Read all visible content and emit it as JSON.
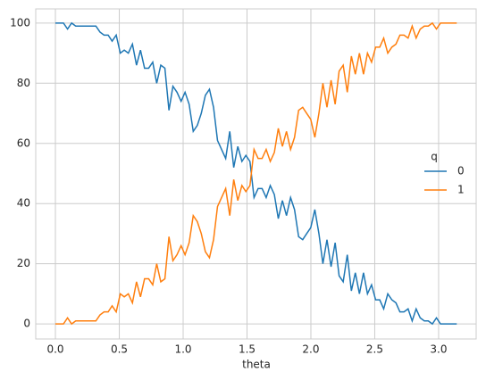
{
  "chart_data": {
    "type": "line",
    "x_label": "theta",
    "x": [
      0,
      0.032,
      0.063,
      0.095,
      0.127,
      0.159,
      0.19,
      0.222,
      0.254,
      0.286,
      0.317,
      0.349,
      0.381,
      0.413,
      0.444,
      0.476,
      0.508,
      0.539,
      0.571,
      0.603,
      0.635,
      0.666,
      0.698,
      0.73,
      0.762,
      0.793,
      0.825,
      0.857,
      0.889,
      0.92,
      0.952,
      0.984,
      1.015,
      1.047,
      1.079,
      1.111,
      1.142,
      1.174,
      1.206,
      1.238,
      1.269,
      1.301,
      1.333,
      1.365,
      1.396,
      1.428,
      1.46,
      1.491,
      1.523,
      1.555,
      1.587,
      1.618,
      1.65,
      1.682,
      1.714,
      1.745,
      1.777,
      1.809,
      1.841,
      1.872,
      1.904,
      1.936,
      1.967,
      1.999,
      2.031,
      2.063,
      2.094,
      2.126,
      2.158,
      2.19,
      2.221,
      2.253,
      2.285,
      2.317,
      2.348,
      2.38,
      2.412,
      2.443,
      2.475,
      2.507,
      2.539,
      2.57,
      2.602,
      2.634,
      2.666,
      2.697,
      2.729,
      2.761,
      2.793,
      2.824,
      2.856,
      2.888,
      2.919,
      2.951,
      2.983,
      3.015,
      3.046,
      3.078,
      3.11,
      3.142
    ],
    "series": [
      {
        "name": "0",
        "color": "#1f77b4",
        "values": [
          100,
          100,
          100,
          98,
          100,
          99,
          99,
          99,
          99,
          99,
          99,
          97,
          96,
          96,
          94,
          96,
          90,
          91,
          90,
          93,
          86,
          91,
          85,
          85,
          87,
          80,
          86,
          85,
          71,
          79,
          77,
          74,
          77,
          73,
          64,
          66,
          70,
          76,
          78,
          72,
          61,
          58,
          55,
          64,
          52,
          59,
          54,
          56,
          54,
          42,
          45,
          45,
          42,
          46,
          43,
          35,
          41,
          36,
          42,
          38,
          29,
          28,
          30,
          32,
          38,
          30,
          20,
          28,
          19,
          27,
          16,
          14,
          23,
          11,
          17,
          10,
          17,
          10,
          13,
          8,
          8,
          5,
          10,
          8,
          7,
          4,
          4,
          5,
          1,
          5,
          2,
          1,
          1,
          0,
          2,
          0,
          0,
          0,
          0,
          0
        ]
      },
      {
        "name": "1",
        "color": "#ff7f0e",
        "values": [
          0,
          0,
          0,
          2,
          0,
          1,
          1,
          1,
          1,
          1,
          1,
          3,
          4,
          4,
          6,
          4,
          10,
          9,
          10,
          7,
          14,
          9,
          15,
          15,
          13,
          20,
          14,
          15,
          29,
          21,
          23,
          26,
          23,
          27,
          36,
          34,
          30,
          24,
          22,
          28,
          39,
          42,
          45,
          36,
          48,
          41,
          46,
          44,
          46,
          58,
          55,
          55,
          58,
          54,
          57,
          65,
          59,
          64,
          58,
          62,
          71,
          72,
          70,
          68,
          62,
          70,
          80,
          72,
          81,
          73,
          84,
          86,
          77,
          89,
          83,
          90,
          83,
          90,
          87,
          92,
          92,
          95,
          90,
          92,
          93,
          96,
          96,
          95,
          99,
          95,
          98,
          99,
          99,
          100,
          98,
          100,
          100,
          100,
          100,
          100
        ]
      }
    ],
    "legend_title": "q",
    "xlim": [
      -0.154,
      3.294
    ],
    "xticks": [
      {
        "value": 0,
        "label": "0.0"
      },
      {
        "value": 0.5,
        "label": "0.5"
      },
      {
        "value": 1,
        "label": "1.0"
      },
      {
        "value": 1.5,
        "label": "1.5"
      },
      {
        "value": 2,
        "label": "2.0"
      },
      {
        "value": 2.5,
        "label": "2.5"
      },
      {
        "value": 3,
        "label": "3.0"
      }
    ],
    "ylim": [
      -5,
      104.7
    ],
    "yticks": [
      0,
      20,
      40,
      60,
      80,
      100
    ],
    "grid": true
  }
}
